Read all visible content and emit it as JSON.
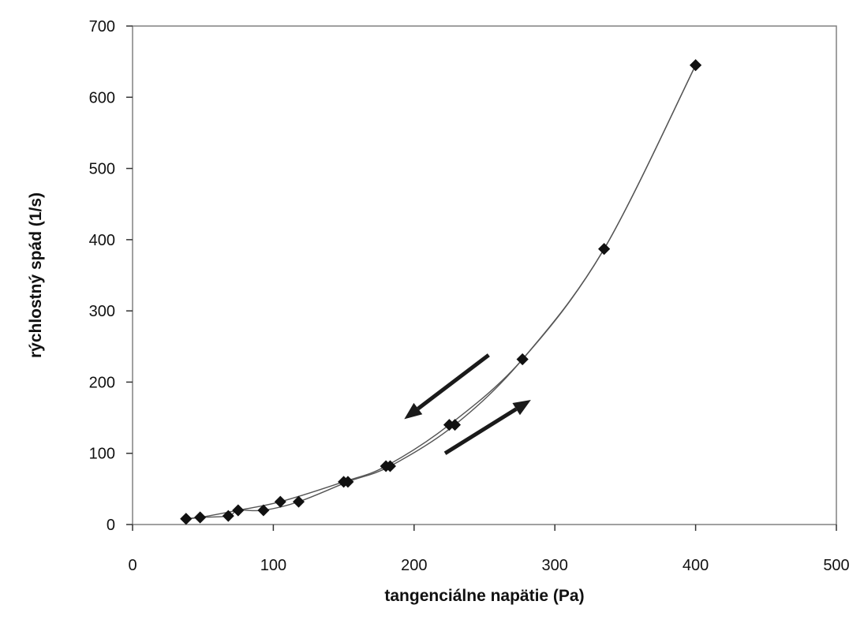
{
  "chart_data": {
    "type": "scatter",
    "title": "",
    "xlabel": "tangenciálne napätie (Pa)",
    "ylabel": "rýchlostný spád (1/s)",
    "xlim": [
      0,
      500
    ],
    "ylim": [
      0,
      700
    ],
    "xticks": [
      "0",
      "100",
      "200",
      "300",
      "400",
      "500"
    ],
    "yticks": [
      "0",
      "100",
      "200",
      "300",
      "400",
      "500",
      "600",
      "700"
    ],
    "grid": false,
    "legend": "none",
    "series": [
      {
        "x": [
          38,
          48,
          68,
          75,
          93,
          118,
          153,
          183,
          229,
          277,
          335,
          400
        ],
        "y": [
          8,
          10,
          12,
          20,
          20,
          32,
          60,
          82,
          140,
          232,
          387,
          645
        ]
      },
      {
        "x": [
          400,
          335,
          277,
          225,
          180,
          150,
          105,
          75,
          48,
          38
        ],
        "y": [
          645,
          387,
          232,
          140,
          82,
          60,
          32,
          20,
          10,
          8
        ]
      }
    ],
    "annotations": [
      {
        "type": "arrow",
        "direction": "up-right",
        "from": [
          222,
          100
        ],
        "to": [
          283,
          175
        ]
      },
      {
        "type": "arrow",
        "direction": "down-left",
        "from": [
          253,
          238
        ],
        "to": [
          193,
          148
        ]
      }
    ],
    "colors": {
      "marker": "#111111",
      "line": "#555555",
      "arrow": "#1a1a1a"
    }
  }
}
